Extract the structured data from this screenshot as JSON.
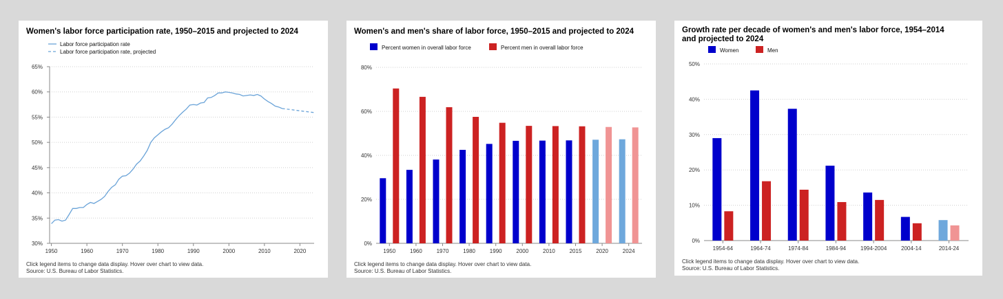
{
  "charts": [
    {
      "title": "Women's labor force participation rate, 1950–2015 and projected to 2024",
      "note": "Click legend items to change data display. Hover over chart to view data.",
      "source": "Source: U.S. Bureau of Labor Statistics."
    },
    {
      "title": "Women's and men's share of labor force, 1950–2015 and projected to 2024",
      "note": "Click legend items to change data display. Hover over chart to view data.",
      "source": "Source: U.S. Bureau of Labor Statistics."
    },
    {
      "title": "Growth rate per decade of women's and men's labor force, 1954–2014 and projected to 2024",
      "note": "Click legend items to change data display. Hover over chart to view data.",
      "source": "Source: U.S. Bureau of Labor Statistics."
    }
  ],
  "chart_data": [
    {
      "type": "line",
      "title": "Women's labor force participation rate, 1950–2015 and projected to 2024",
      "xlim": [
        1949.5,
        2024
      ],
      "ylim": [
        30,
        65
      ],
      "x_ticks": [
        1950,
        1960,
        1970,
        1980,
        1990,
        2000,
        2010,
        2020
      ],
      "y_ticks": [
        "30%",
        "35%",
        "40%",
        "45%",
        "50%",
        "55%",
        "60%",
        "65%"
      ],
      "grid": true,
      "legend_position": "top-left",
      "color": "#6aa3d8",
      "series": [
        {
          "name": "Labor force participation rate",
          "style": "solid",
          "x": [
            1950,
            1951,
            1952,
            1953,
            1954,
            1955,
            1956,
            1957,
            1958,
            1959,
            1960,
            1961,
            1962,
            1963,
            1964,
            1965,
            1966,
            1967,
            1968,
            1969,
            1970,
            1971,
            1972,
            1973,
            1974,
            1975,
            1976,
            1977,
            1978,
            1979,
            1980,
            1981,
            1982,
            1983,
            1984,
            1985,
            1986,
            1987,
            1988,
            1989,
            1990,
            1991,
            1992,
            1993,
            1994,
            1995,
            1996,
            1997,
            1998,
            1999,
            2000,
            2001,
            2002,
            2003,
            2004,
            2005,
            2006,
            2007,
            2008,
            2009,
            2010,
            2011,
            2012,
            2013,
            2014,
            2015
          ],
          "y": [
            33.9,
            34.6,
            34.7,
            34.4,
            34.6,
            35.7,
            36.9,
            36.9,
            37.1,
            37.1,
            37.7,
            38.1,
            37.9,
            38.3,
            38.7,
            39.3,
            40.3,
            41.1,
            41.6,
            42.7,
            43.3,
            43.4,
            43.9,
            44.7,
            45.7,
            46.3,
            47.3,
            48.4,
            50.0,
            50.9,
            51.5,
            52.1,
            52.6,
            52.9,
            53.6,
            54.5,
            55.3,
            56.0,
            56.6,
            57.4,
            57.5,
            57.4,
            57.8,
            57.9,
            58.8,
            58.9,
            59.3,
            59.8,
            59.8,
            60.0,
            59.9,
            59.8,
            59.6,
            59.5,
            59.2,
            59.3,
            59.4,
            59.3,
            59.5,
            59.2,
            58.6,
            58.1,
            57.7,
            57.2,
            57.0,
            56.7
          ]
        },
        {
          "name": "Labor force participation rate, projected",
          "style": "dashed",
          "x": [
            2015,
            2024
          ],
          "y": [
            56.7,
            55.9
          ]
        }
      ]
    },
    {
      "type": "bar",
      "title": "Women's and men's share of labor force, 1950–2015 and projected to 2024",
      "categories": [
        "1950",
        "1960",
        "1970",
        "1980",
        "1990",
        "2000",
        "2010",
        "2015",
        "2020",
        "2024"
      ],
      "ylim": [
        0,
        80
      ],
      "y_ticks": [
        "0%",
        "20%",
        "40%",
        "60%",
        "80%"
      ],
      "grid": true,
      "legend_position": "top-left",
      "projected_from_index": 8,
      "series": [
        {
          "name": "Percent women in overall labor force",
          "color": "#0000cc",
          "projected_color": "#6ea8dc",
          "values": [
            29.6,
            33.4,
            38.1,
            42.5,
            45.2,
            46.6,
            46.7,
            46.8,
            47.1,
            47.3
          ]
        },
        {
          "name": "Percent men in overall labor force",
          "color": "#cc2222",
          "projected_color": "#f09494",
          "values": [
            70.4,
            66.6,
            61.9,
            57.5,
            54.8,
            53.4,
            53.3,
            53.2,
            52.9,
            52.7
          ]
        }
      ]
    },
    {
      "type": "bar",
      "title": "Growth rate per decade of women's and men's labor force, 1954–2014 and projected to 2024",
      "categories": [
        "1954-64",
        "1964-74",
        "1974-84",
        "1984-94",
        "1994-2004",
        "2004-14",
        "2014-24"
      ],
      "ylim": [
        0,
        50
      ],
      "y_ticks": [
        "0%",
        "10%",
        "20%",
        "30%",
        "40%",
        "50%"
      ],
      "grid": true,
      "legend_position": "top-left",
      "projected_from_index": 6,
      "series": [
        {
          "name": "Women",
          "color": "#0000cc",
          "projected_color": "#6ea8dc",
          "values": [
            29.0,
            42.5,
            37.3,
            21.2,
            13.6,
            6.7,
            5.8
          ]
        },
        {
          "name": "Men",
          "color": "#cc2222",
          "projected_color": "#f09494",
          "values": [
            8.3,
            16.8,
            14.4,
            10.9,
            11.5,
            4.9,
            4.3
          ]
        }
      ]
    }
  ]
}
